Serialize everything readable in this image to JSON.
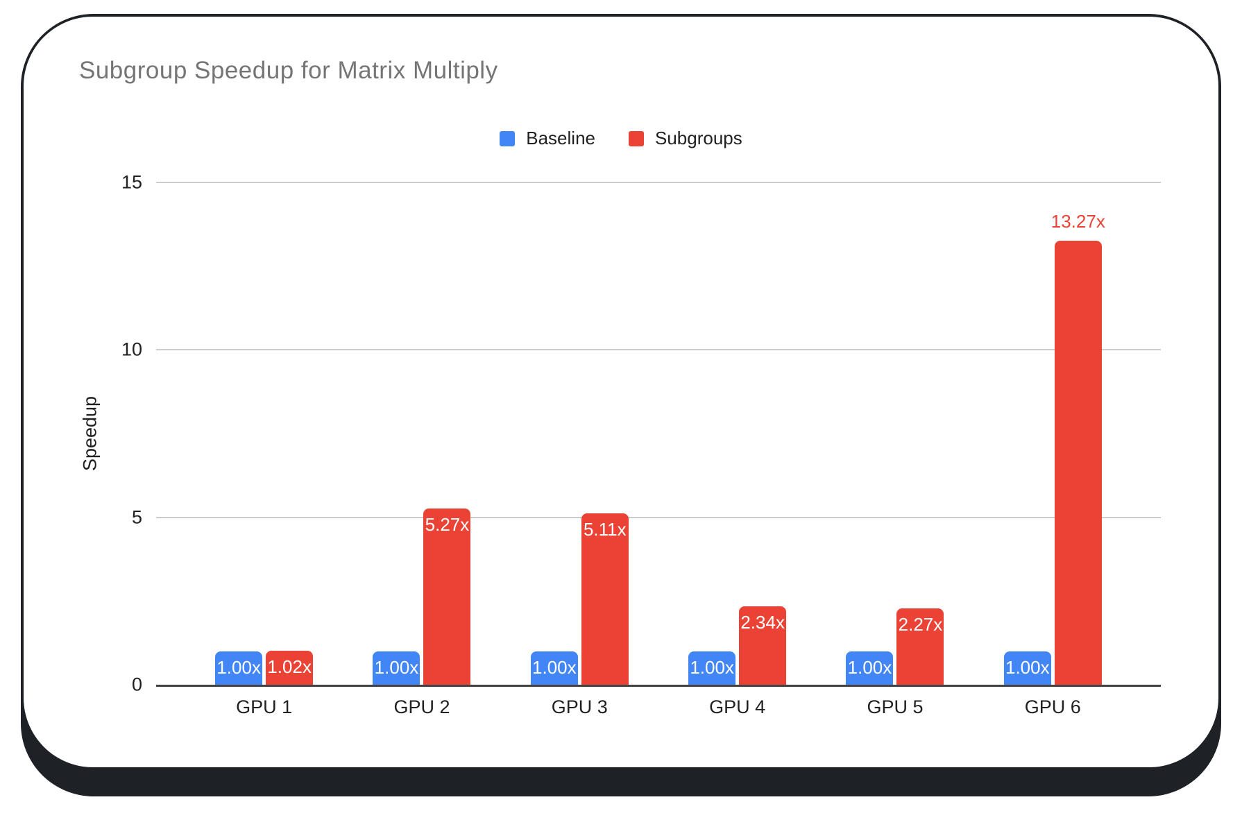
{
  "chart_data": {
    "type": "bar",
    "title": "Subgroup Speedup for Matrix Multiply",
    "categories": [
      "GPU 1",
      "GPU 2",
      "GPU 3",
      "GPU 4",
      "GPU 5",
      "GPU 6"
    ],
    "series": [
      {
        "name": "Baseline",
        "color": "#4285F4",
        "values": [
          1.0,
          1.0,
          1.0,
          1.0,
          1.0,
          1.0
        ],
        "labels": [
          "1.00x",
          "1.00x",
          "1.00x",
          "1.00x",
          "1.00x",
          "1.00x"
        ],
        "label_placements": [
          "inside",
          "inside",
          "inside",
          "inside",
          "inside",
          "inside"
        ]
      },
      {
        "name": "Subgroups",
        "color": "#EA4335",
        "values": [
          1.02,
          5.27,
          5.11,
          2.34,
          2.27,
          13.27
        ],
        "labels": [
          "1.02x",
          "5.27x",
          "5.11x",
          "2.34x",
          "2.27x",
          "13.27x"
        ],
        "label_placements": [
          "inside",
          "inside",
          "inside",
          "inside",
          "inside",
          "above"
        ]
      }
    ],
    "ylabel": "Speedup",
    "yticks": [
      0,
      5,
      10,
      15
    ],
    "ylim": [
      0,
      15
    ],
    "legend_position": "top",
    "grid": true,
    "colors": {
      "baseline": "#4285F4",
      "subgroups": "#EA4335",
      "title": "#757575",
      "axis": "#424242",
      "gridline": "#cccccc",
      "tick_label": "#212121",
      "label_inside": "#ffffff",
      "card_shadow": "#1E2126"
    }
  }
}
